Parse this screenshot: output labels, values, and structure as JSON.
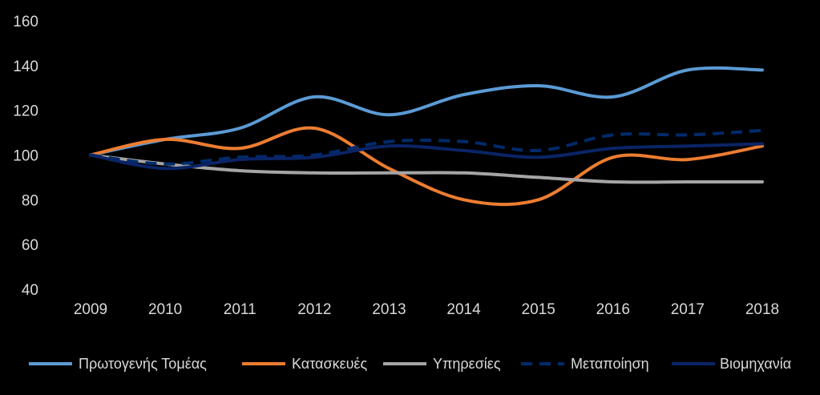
{
  "chart_data": {
    "type": "line",
    "title": "",
    "xlabel": "",
    "ylabel": "",
    "x": [
      "2009",
      "2010",
      "2011",
      "2012",
      "2013",
      "2014",
      "2015",
      "2016",
      "2017",
      "2018"
    ],
    "ylim": [
      40,
      160
    ],
    "yticks": [
      "40",
      "60",
      "80",
      "100",
      "120",
      "140",
      "160"
    ],
    "grid": false,
    "legend_position": "bottom",
    "series": [
      {
        "name": "Πρωτογενής Τομέας",
        "color": "#5b9bd5",
        "dash": "solid",
        "values": [
          100,
          107,
          112,
          126,
          118,
          127,
          131,
          126,
          138,
          138
        ]
      },
      {
        "name": "Κατασκευές",
        "color": "#ed7d31",
        "dash": "solid",
        "values": [
          100,
          107,
          103,
          112,
          94,
          80,
          80,
          99,
          98,
          104
        ]
      },
      {
        "name": "Υπηρεσίες",
        "color": "#a5a5a5",
        "dash": "solid",
        "values": [
          100,
          96,
          93,
          92,
          92,
          92,
          90,
          88,
          88,
          88
        ]
      },
      {
        "name": "Μεταποίηση",
        "color": "#002b6b",
        "dash": "dashed",
        "values": [
          100,
          96,
          99,
          100,
          106,
          106,
          102,
          109,
          109,
          111
        ]
      },
      {
        "name": "Βιομηχανία",
        "color": "#0a2466",
        "dash": "solid",
        "values": [
          100,
          94,
          98,
          99,
          104,
          102,
          99,
          103,
          104,
          105
        ]
      }
    ]
  }
}
